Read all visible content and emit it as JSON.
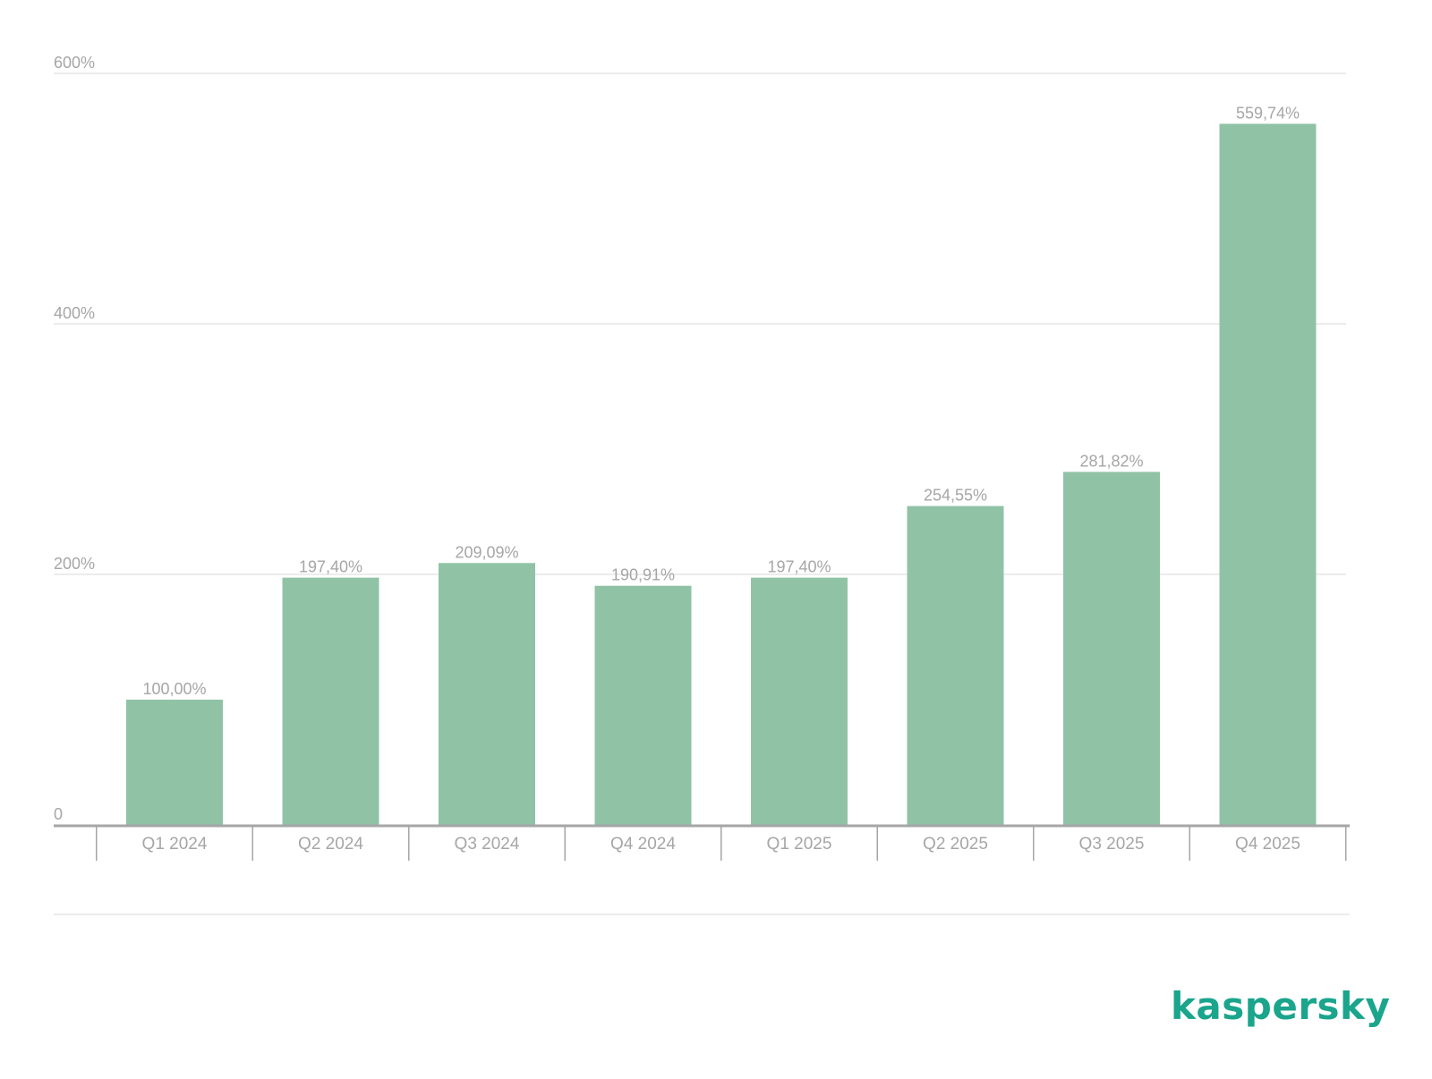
{
  "chart_data": {
    "type": "bar",
    "categories": [
      "Q1 2024",
      "Q2 2024",
      "Q3 2024",
      "Q4 2024",
      "Q1 2025",
      "Q2 2025",
      "Q3 2025",
      "Q4 2025"
    ],
    "values": [
      100.0,
      197.4,
      209.09,
      190.91,
      197.4,
      254.55,
      281.82,
      559.74
    ],
    "value_labels": [
      "100,00%",
      "197,40%",
      "209,09%",
      "190,91%",
      "197,40%",
      "254,55%",
      "281,82%",
      "559,74%"
    ],
    "title": "",
    "xlabel": "",
    "ylabel": "",
    "ylim": [
      0,
      600
    ],
    "yticks": [
      0,
      200,
      400,
      600
    ],
    "ytick_labels": [
      "0",
      "200%",
      "400%",
      "600%"
    ],
    "grid": true,
    "legend": "none"
  },
  "colors": {
    "bar": "#90c3a6",
    "grid": "#e6e6e6",
    "axis": "#a6a6a6",
    "text": "#a6a6a6",
    "logo": "#1aa58c"
  },
  "brand": {
    "logo_text": "kaspersky"
  }
}
